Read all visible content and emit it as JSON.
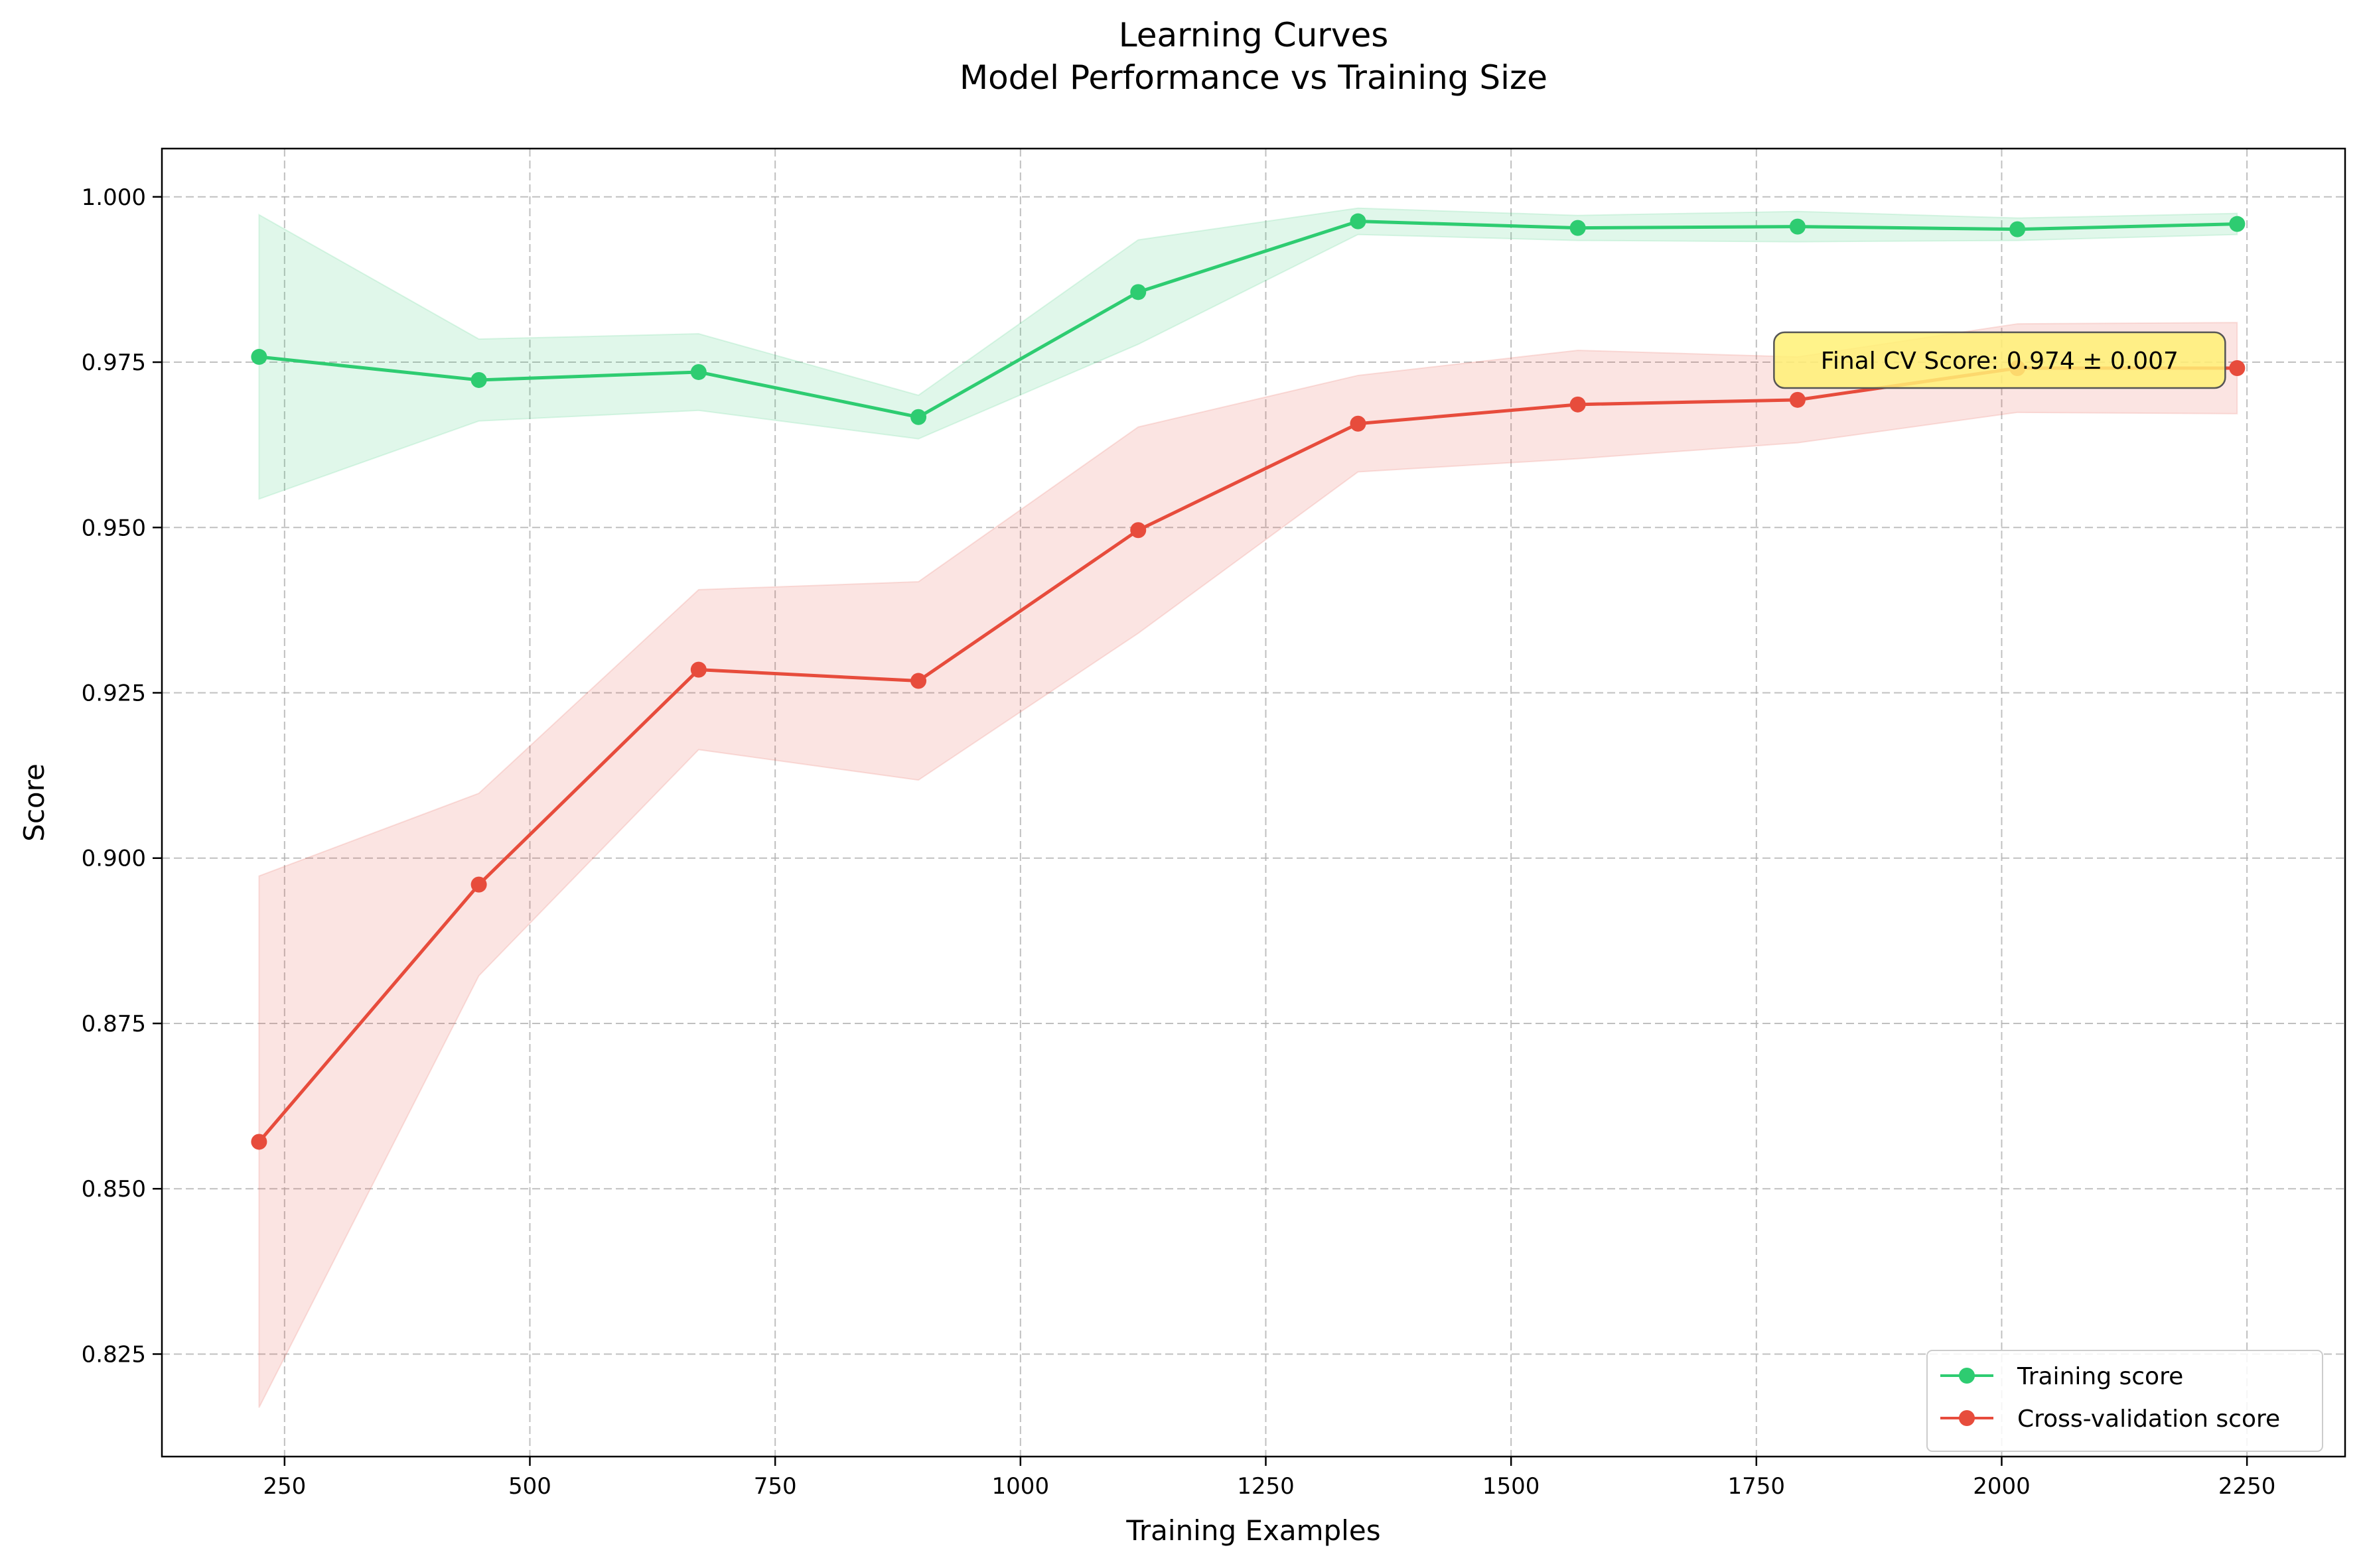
{
  "chart_data": {
    "type": "line",
    "title": "Learning Curves",
    "subtitle": "Model Performance vs Training Size",
    "xlabel": "Training Examples",
    "ylabel": "Score",
    "xlim": [
      125,
      2350
    ],
    "ylim": [
      0.8095,
      1.0073
    ],
    "xticks": [
      250,
      500,
      750,
      1000,
      1250,
      1500,
      1750,
      2000,
      2250
    ],
    "xtick_labels": [
      "250",
      "500",
      "750",
      "1000",
      "1250",
      "1500",
      "1750",
      "2000",
      "2250"
    ],
    "yticks": [
      0.825,
      0.85,
      0.875,
      0.9,
      0.925,
      0.95,
      0.975,
      1.0
    ],
    "ytick_labels": [
      "0.825",
      "0.850",
      "0.875",
      "0.900",
      "0.925",
      "0.950",
      "0.975",
      "1.000"
    ],
    "grid": true,
    "legend_position": "lower-right",
    "x": [
      224,
      448,
      672,
      896,
      1120,
      1344,
      1568,
      1792,
      2016,
      2240
    ],
    "series": [
      {
        "name": "Training score",
        "color": "#2ecc71",
        "values": [
          0.9758,
          0.9723,
          0.9735,
          0.9667,
          0.9856,
          0.9963,
          0.9953,
          0.9955,
          0.9951,
          0.9959
        ],
        "upper": [
          0.9973,
          0.9785,
          0.9793,
          0.97,
          0.9935,
          0.9983,
          0.9972,
          0.9978,
          0.9968,
          0.9975
        ],
        "lower": [
          0.9543,
          0.9661,
          0.9677,
          0.9634,
          0.9777,
          0.9943,
          0.9934,
          0.9932,
          0.9934,
          0.9943
        ]
      },
      {
        "name": "Cross-validation score",
        "color": "#e74c3c",
        "values": [
          0.8571,
          0.896,
          0.9285,
          0.9268,
          0.9496,
          0.9657,
          0.9686,
          0.9693,
          0.9741,
          0.9741
        ],
        "upper": [
          0.8973,
          0.9098,
          0.9406,
          0.9418,
          0.9652,
          0.973,
          0.9768,
          0.9758,
          0.9808,
          0.981
        ],
        "lower": [
          0.8169,
          0.8822,
          0.9164,
          0.9118,
          0.934,
          0.9584,
          0.9604,
          0.9628,
          0.9674,
          0.9672
        ]
      }
    ],
    "annotation": {
      "text": "Final CV Score: 0.974 ± 0.007",
      "background": "#fff176",
      "border": "#555555"
    }
  }
}
